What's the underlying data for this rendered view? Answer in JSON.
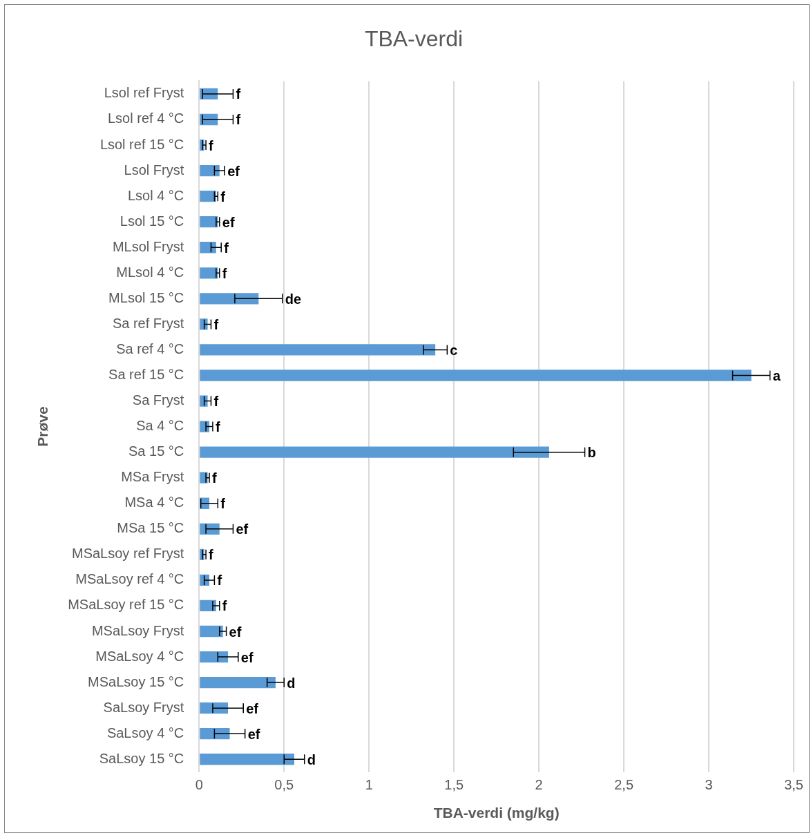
{
  "chart_data": {
    "type": "bar",
    "orientation": "horizontal",
    "title": "TBA-verdi",
    "xlabel": "TBA-verdi (mg/kg)",
    "ylabel": "Prøve",
    "categories": [
      "Lsol ref Fryst",
      "Lsol ref 4 °C",
      "Lsol ref 15 °C",
      "Lsol Fryst",
      "Lsol 4 °C",
      "Lsol 15 °C",
      "MLsol Fryst",
      "MLsol 4 °C",
      "MLsol 15 °C",
      "Sa ref Fryst",
      "Sa ref 4 °C",
      "Sa ref 15 °C",
      "Sa Fryst",
      "Sa 4 °C",
      "Sa 15 °C",
      "MSa Fryst",
      "MSa 4 °C",
      "MSa 15 °C",
      "MSaLsoy ref Fryst",
      "MSaLsoy ref 4 °C",
      "MSaLsoy ref 15 °C",
      "MSaLsoy Fryst",
      "MSaLsoy 4 °C",
      "MSaLsoy 15 °C",
      "SaLsoy Fryst",
      "SaLsoy 4 °C",
      "SaLsoy 15 °C"
    ],
    "values": [
      0.11,
      0.11,
      0.03,
      0.12,
      0.1,
      0.11,
      0.1,
      0.11,
      0.35,
      0.05,
      1.39,
      3.25,
      0.05,
      0.06,
      2.06,
      0.05,
      0.06,
      0.12,
      0.03,
      0.06,
      0.1,
      0.14,
      0.17,
      0.45,
      0.17,
      0.18,
      0.56
    ],
    "errors": [
      0.09,
      0.09,
      0.01,
      0.03,
      0.01,
      0.01,
      0.03,
      0.01,
      0.14,
      0.02,
      0.07,
      0.11,
      0.02,
      0.02,
      0.21,
      0.01,
      0.05,
      0.08,
      0.01,
      0.03,
      0.02,
      0.02,
      0.06,
      0.05,
      0.09,
      0.09,
      0.06
    ],
    "color": "#5b9bd5",
    "xlim": [
      0,
      3.5
    ],
    "xticks": [
      0,
      {
        "value": 0.5,
        "label": "0,5"
      },
      1,
      {
        "value": 1.5,
        "label": "1,5"
      },
      2,
      {
        "value": 2.5,
        "label": "2,5"
      },
      3,
      {
        "value": 3.5,
        "label": "3,5"
      }
    ],
    "grid": "x",
    "legend": false,
    "annotations": [
      {
        "text": "f",
        "x": 0.2,
        "y": "Lsol ref Fryst"
      },
      {
        "text": "f",
        "x": 0.2,
        "y": "Lsol ref 4 °C"
      },
      {
        "text": "f",
        "x": 0.04,
        "y": "Lsol ref 15 °C"
      },
      {
        "text": "ef",
        "x": 0.15,
        "y": "Lsol Fryst"
      },
      {
        "text": "f",
        "x": 0.11,
        "y": "Lsol 4 °C"
      },
      {
        "text": "ef",
        "x": 0.12,
        "y": "Lsol 15 °C"
      },
      {
        "text": "f",
        "x": 0.13,
        "y": "MLsol Fryst"
      },
      {
        "text": "f",
        "x": 0.12,
        "y": "MLsol 4 °C"
      },
      {
        "text": "de",
        "x": 0.49,
        "y": "MLsol 15 °C"
      },
      {
        "text": "f",
        "x": 0.07,
        "y": "Sa ref Fryst"
      },
      {
        "text": "c",
        "x": 1.46,
        "y": "Sa ref 4 °C"
      },
      {
        "text": "a",
        "x": 3.36,
        "y": "Sa ref 15 °C"
      },
      {
        "text": "f",
        "x": 0.07,
        "y": "Sa Fryst"
      },
      {
        "text": "f",
        "x": 0.08,
        "y": "Sa 4 °C"
      },
      {
        "text": "b",
        "x": 2.27,
        "y": "Sa 15 °C"
      },
      {
        "text": "f",
        "x": 0.06,
        "y": "MSa Fryst"
      },
      {
        "text": "f",
        "x": 0.11,
        "y": "MSa 4 °C"
      },
      {
        "text": "ef",
        "x": 0.2,
        "y": "MSa 15 °C"
      },
      {
        "text": "f",
        "x": 0.04,
        "y": "MSaLsoy ref Fryst"
      },
      {
        "text": "f",
        "x": 0.09,
        "y": "MSaLsoy ref 4 °C"
      },
      {
        "text": "f",
        "x": 0.12,
        "y": "MSaLsoy ref 15 °C"
      },
      {
        "text": "ef",
        "x": 0.16,
        "y": "MSaLsoy Fryst"
      },
      {
        "text": "ef",
        "x": 0.23,
        "y": "MSaLsoy 4 °C"
      },
      {
        "text": "d",
        "x": 0.5,
        "y": "MSaLsoy 15 °C"
      },
      {
        "text": "ef",
        "x": 0.26,
        "y": "SaLsoy Fryst"
      },
      {
        "text": "ef",
        "x": 0.27,
        "y": "SaLsoy 4 °C"
      },
      {
        "text": "d",
        "x": 0.62,
        "y": "SaLsoy 15 °C"
      }
    ]
  }
}
